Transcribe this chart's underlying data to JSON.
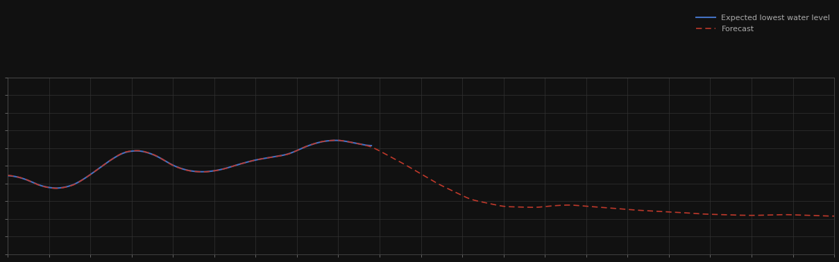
{
  "background_color": "#111111",
  "plot_bg_color": "#111111",
  "grid_color": "#333333",
  "line1_color": "#4472c4",
  "line2_color": "#c0392b",
  "line1_label": "Expected lowest water level",
  "line2_label": "Forecast",
  "figsize": [
    12.09,
    3.78
  ],
  "dpi": 100,
  "xlim": [
    0,
    100
  ],
  "ylim": [
    0,
    10
  ],
  "spine_color": "#555555",
  "tick_color": "#888888",
  "legend_text_color": "#aaaaaa",
  "blue_x": [
    0,
    2,
    4,
    6,
    8,
    10,
    12,
    14,
    16,
    18,
    20,
    22,
    24,
    26,
    28,
    30,
    32,
    34,
    36,
    38,
    40,
    42,
    44
  ],
  "blue_y": [
    4.5,
    4.3,
    3.85,
    3.7,
    3.9,
    4.5,
    5.2,
    5.8,
    5.9,
    5.6,
    5.0,
    4.7,
    4.65,
    4.8,
    5.1,
    5.35,
    5.5,
    5.65,
    6.1,
    6.4,
    6.48,
    6.3,
    6.1
  ],
  "red_x": [
    0,
    2,
    4,
    6,
    8,
    10,
    12,
    14,
    16,
    18,
    20,
    22,
    24,
    26,
    28,
    30,
    32,
    34,
    36,
    38,
    40,
    42,
    44,
    48,
    52,
    56,
    60,
    64,
    66,
    68,
    70,
    72,
    74,
    76,
    78,
    80,
    82,
    84,
    86,
    88,
    90,
    92,
    94,
    96,
    98,
    100
  ],
  "red_y": [
    4.5,
    4.3,
    3.85,
    3.7,
    3.9,
    4.5,
    5.2,
    5.8,
    5.9,
    5.6,
    5.0,
    4.7,
    4.65,
    4.8,
    5.1,
    5.35,
    5.5,
    5.65,
    6.1,
    6.4,
    6.48,
    6.3,
    6.1,
    5.1,
    4.0,
    3.1,
    2.7,
    2.65,
    2.75,
    2.8,
    2.72,
    2.65,
    2.58,
    2.5,
    2.45,
    2.4,
    2.35,
    2.28,
    2.25,
    2.22,
    2.2,
    2.22,
    2.25,
    2.22,
    2.18,
    2.16
  ]
}
